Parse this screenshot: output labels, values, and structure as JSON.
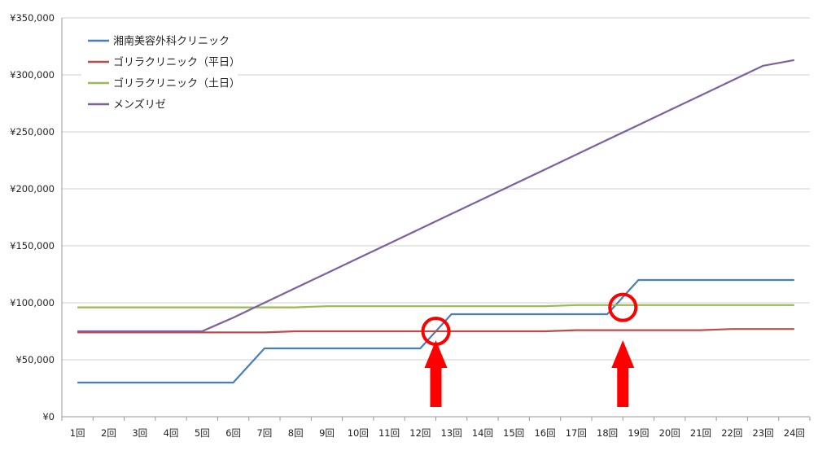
{
  "chart_data": {
    "type": "line",
    "title": "",
    "xlabel": "",
    "ylabel": "",
    "categories": [
      "1回",
      "2回",
      "3回",
      "4回",
      "5回",
      "6回",
      "7回",
      "8回",
      "9回",
      "10回",
      "11回",
      "12回",
      "13回",
      "14回",
      "15回",
      "16回",
      "17回",
      "18回",
      "19回",
      "20回",
      "21回",
      "22回",
      "23回",
      "24回"
    ],
    "y_ticks": [
      "¥0",
      "¥50,000",
      "¥100,000",
      "¥150,000",
      "¥200,000",
      "¥250,000",
      "¥300,000",
      "¥350,000"
    ],
    "ylim": [
      0,
      350000
    ],
    "grid": "horizontal",
    "legend_position": "top-left",
    "series": [
      {
        "name": "湘南美容外科クリニック",
        "color": "#4a7ebb",
        "values": [
          30000,
          30000,
          30000,
          30000,
          30000,
          30000,
          60000,
          60000,
          60000,
          60000,
          60000,
          60000,
          90000,
          90000,
          90000,
          90000,
          90000,
          90000,
          120000,
          120000,
          120000,
          120000,
          120000,
          120000
        ]
      },
      {
        "name": "ゴリラクリニック（平日）",
        "color": "#be4b48",
        "values": [
          74000,
          74000,
          74000,
          74000,
          74000,
          74000,
          74000,
          75000,
          75000,
          75000,
          75000,
          75000,
          75000,
          75000,
          75000,
          75000,
          76000,
          76000,
          76000,
          76000,
          76000,
          77000,
          77000,
          77000
        ]
      },
      {
        "name": "ゴリラクリニック（土日）",
        "color": "#98b954",
        "values": [
          96000,
          96000,
          96000,
          96000,
          96000,
          96000,
          96000,
          96000,
          97000,
          97000,
          97000,
          97000,
          97000,
          97000,
          97000,
          97000,
          98000,
          98000,
          98000,
          98000,
          98000,
          98000,
          98000,
          98000
        ]
      },
      {
        "name": "メンズリゼ",
        "color": "#7d60a0",
        "values": [
          75000,
          75000,
          75000,
          75000,
          75000,
          87000,
          100000,
          113000,
          126000,
          139000,
          152000,
          165000,
          178000,
          191000,
          204000,
          217000,
          230000,
          243000,
          256000,
          269000,
          282000,
          295000,
          308000,
          313000
        ]
      }
    ],
    "annotations": {
      "circles": [
        {
          "x_between": [
            "12回",
            "13回"
          ],
          "y": 75000,
          "color": "#ff0000"
        },
        {
          "x_between": [
            "18回",
            "19回"
          ],
          "y": 96000,
          "color": "#ff0000"
        }
      ],
      "arrows": [
        {
          "x_between": [
            "12回",
            "13回"
          ],
          "direction": "up",
          "color": "#ff0000"
        },
        {
          "x_between": [
            "18回",
            "19回"
          ],
          "direction": "up",
          "color": "#ff0000"
        }
      ]
    }
  }
}
